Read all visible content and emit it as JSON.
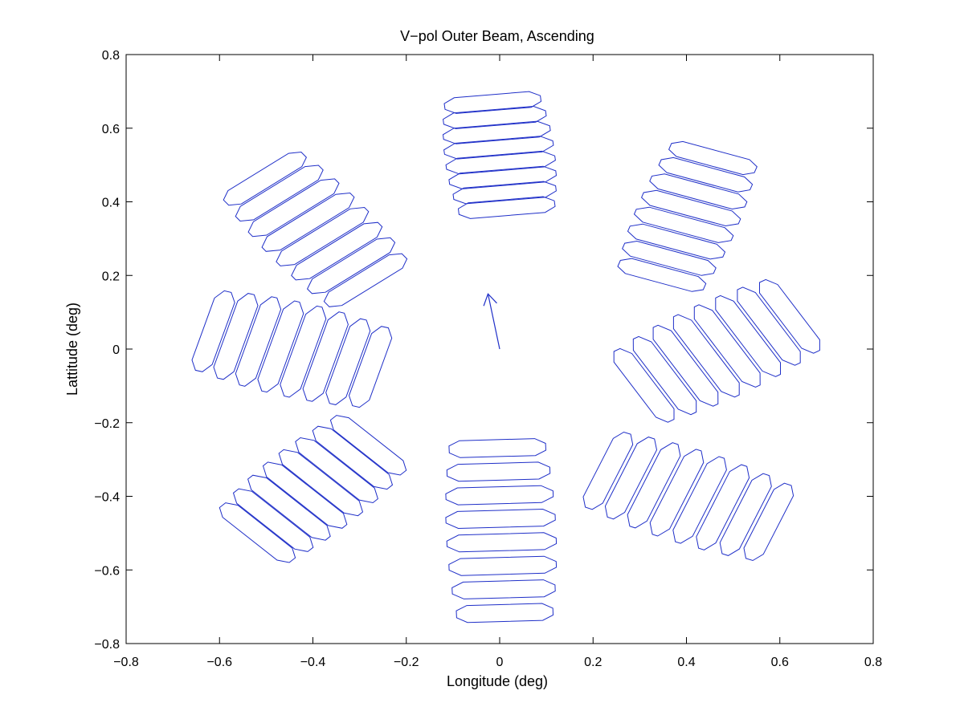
{
  "chart_data": {
    "type": "line",
    "title": "V−pol Outer Beam, Ascending",
    "xlabel": "Longitude (deg)",
    "ylabel": "Lattitude (deg)",
    "xlim": [
      -0.8,
      0.8
    ],
    "ylim": [
      -0.8,
      0.8
    ],
    "xticks": [
      "−0.8",
      "−0.6",
      "−0.4",
      "−0.2",
      "0",
      "0.2",
      "0.4",
      "0.6",
      "0.8"
    ],
    "yticks": [
      "−0.8",
      "−0.6",
      "−0.4",
      "−0.2",
      "0",
      "0.2",
      "0.4",
      "0.6",
      "0.8"
    ],
    "xtick_values": [
      -0.8,
      -0.6,
      -0.4,
      -0.2,
      0,
      0.2,
      0.4,
      0.6,
      0.8
    ],
    "ytick_values": [
      -0.8,
      -0.6,
      -0.4,
      -0.2,
      0,
      0.2,
      0.4,
      0.6,
      0.8
    ],
    "grid": false,
    "line_color": "#1f2fc8",
    "arrow": {
      "from": [
        0.0,
        0.0
      ],
      "to": [
        -0.025,
        0.15
      ]
    },
    "clusters": [
      {
        "center": [
          0.0,
          0.527
        ],
        "count": 8,
        "length": 0.235,
        "width": 0.043,
        "angle_deg": 6,
        "spacing": 0.041
      },
      {
        "center": [
          0.003,
          -0.493
        ],
        "count": 8,
        "length": 0.235,
        "width": 0.046,
        "angle_deg": 2,
        "spacing": 0.064
      },
      {
        "center": [
          0.402,
          0.36
        ],
        "count": 8,
        "length": 0.22,
        "width": 0.043,
        "angle_deg": -19,
        "spacing": 0.048
      },
      {
        "center": [
          -0.395,
          0.325
        ],
        "count": 8,
        "length": 0.24,
        "width": 0.046,
        "angle_deg": 38,
        "spacing": 0.05
      },
      {
        "center": [
          -0.445,
          0.0
        ],
        "count": 8,
        "length": 0.255,
        "width": 0.045,
        "angle_deg": 74,
        "spacing": 0.05
      },
      {
        "center": [
          0.465,
          -0.005
        ],
        "count": 8,
        "length": 0.255,
        "width": 0.045,
        "angle_deg": -59,
        "spacing": 0.052
      },
      {
        "center": [
          -0.4,
          -0.38
        ],
        "count": 8,
        "length": 0.24,
        "width": 0.046,
        "angle_deg": -45,
        "spacing": 0.048
      },
      {
        "center": [
          0.404,
          -0.4
        ],
        "count": 8,
        "length": 0.25,
        "width": 0.045,
        "angle_deg": 68,
        "spacing": 0.053
      }
    ]
  }
}
